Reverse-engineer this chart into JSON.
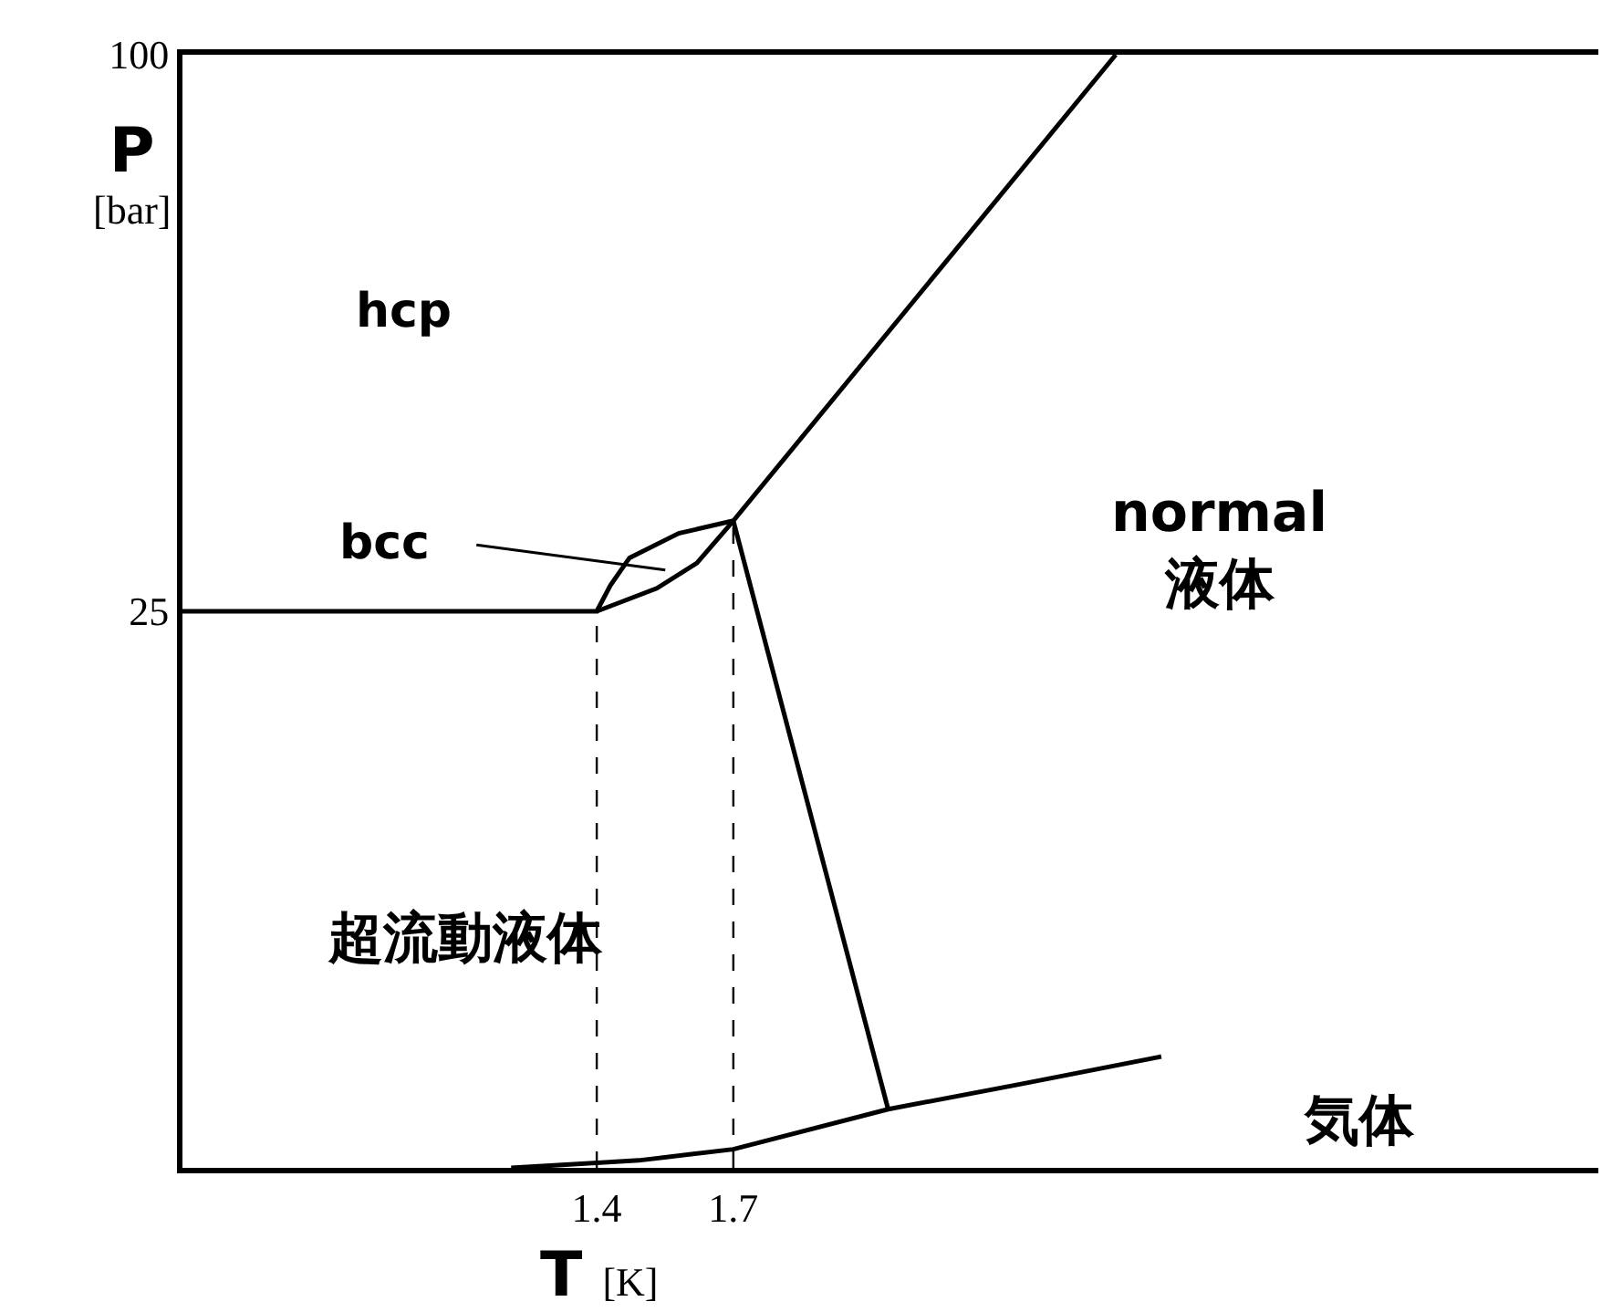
{
  "chart_data": {
    "type": "line",
    "xlabel": "T [K]",
    "ylabel": "P [bar]",
    "xlim": [
      0.49,
      3.6
    ],
    "ylim": [
      -50,
      100
    ],
    "xticks": [
      1.4,
      1.7
    ],
    "yticks": [
      25,
      100
    ],
    "marker": "none",
    "series": [
      {
        "color": "#000000",
        "x": [
          0.49,
          1.4,
          1.43,
          1.472,
          1.58,
          1.7,
          2.54
        ],
        "values": [
          25,
          25,
          28.5,
          32.2,
          35.5,
          37.2,
          100
        ]
      },
      {
        "color": "#000000",
        "x": [
          1.4,
          1.532,
          1.62,
          1.7
        ],
        "values": [
          25,
          28.1,
          31.5,
          37.2
        ]
      },
      {
        "color": "#000000",
        "x": [
          1.7,
          2.04
        ],
        "values": [
          37.2,
          -42.1
        ]
      },
      {
        "color": "#000000",
        "x": [
          1.212,
          1.492,
          1.7,
          2.04,
          2.332,
          2.64
        ],
        "values": [
          -50,
          -49.0,
          -47.5,
          -42.1,
          -38.7,
          -35.0
        ]
      },
      {
        "color": "#000000",
        "line_style": "dashed",
        "x": [
          1.4,
          1.4
        ],
        "values": [
          -50,
          25
        ]
      },
      {
        "color": "#000000",
        "line_style": "dashed",
        "x": [
          1.7,
          1.7
        ],
        "values": [
          -50,
          37.2
        ]
      }
    ],
    "annotations": [
      "hcp",
      "bcc",
      "normal\n液体",
      "超流動液体",
      "気体"
    ]
  }
}
